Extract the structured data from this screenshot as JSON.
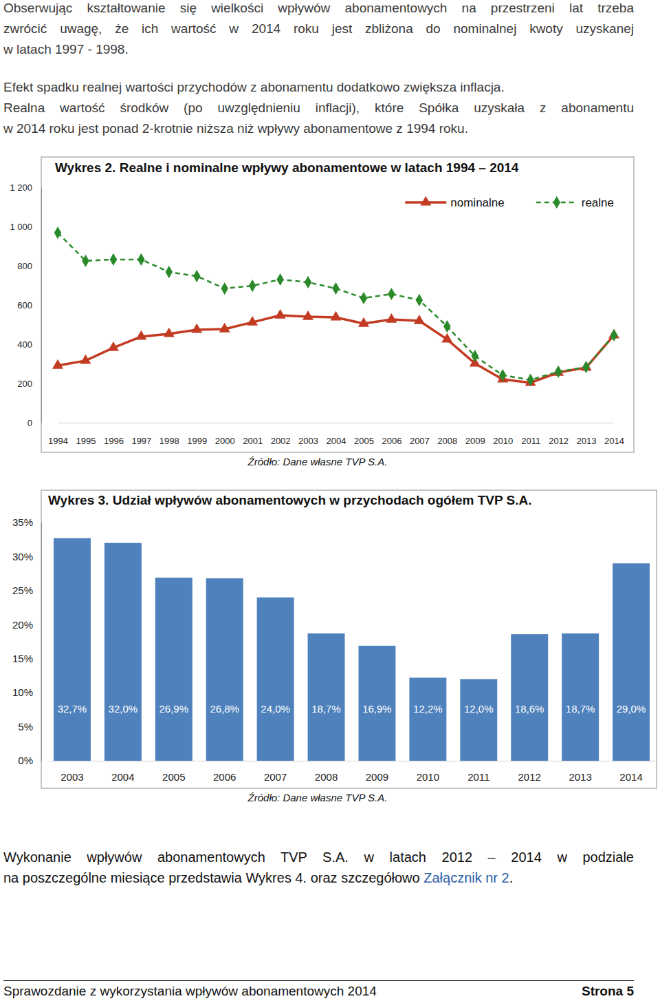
{
  "paragraphs": [
    {
      "lines": [
        "Obserwując kształtowanie się wielkości wpływów abonamentowych na przestrzeni lat trzeba",
        "zwrócić uwagę, że ich wartość w 2014 roku jest zbliżona do nominalnej kwoty uzyskanej",
        "w latach 1997 - 1998."
      ]
    },
    {
      "lines": [
        "Efekt spadku realnej wartości przychodów z abonamentu dodatkowo zwiększa inflacja."
      ]
    },
    {
      "lines": [
        "Realna wartość środków (po uwzględnieniu inflacji), które Spółka uzyskała z abonamentu",
        "w 2014 roku jest ponad 2-krotnie niższa niż wpływy abonamentowe z 1994 roku."
      ]
    }
  ],
  "chart_data": [
    {
      "type": "line",
      "title": "Wykres 2. Realne i nominalne wpływy abonamentowe w latach 1994 – 2014",
      "source": "Źródło: Dane własne TVP S.A.",
      "categories": [
        "1994",
        "1995",
        "1996",
        "1997",
        "1998",
        "1999",
        "2000",
        "2001",
        "2002",
        "2003",
        "2004",
        "2005",
        "2006",
        "2007",
        "2008",
        "2009",
        "2010",
        "2011",
        "2012",
        "2013",
        "2014"
      ],
      "series": [
        {
          "name": "nominalne",
          "color": "#c23b22",
          "marker": "triangle",
          "line_style": "solid",
          "values": [
            291,
            316,
            382,
            439,
            453,
            474,
            477,
            512,
            547,
            540,
            537,
            505,
            526,
            519,
            425,
            302,
            221,
            204,
            256,
            281,
            446
          ]
        },
        {
          "name": "realne",
          "color": "#2a8a2a",
          "marker": "diamond",
          "line_style": "dashed",
          "values": [
            968,
            825,
            832,
            832,
            768,
            747,
            684,
            698,
            730,
            716,
            684,
            635,
            656,
            625,
            491,
            340,
            242,
            218,
            260,
            284,
            446
          ]
        }
      ],
      "ylim": [
        0,
        1200
      ],
      "yticks": [
        0,
        200,
        400,
        600,
        800,
        {
          "value": 1000,
          "label": "1 000"
        },
        {
          "value": 1200,
          "label": "1 200"
        }
      ],
      "grid": false,
      "legend": "top-right"
    },
    {
      "type": "bar",
      "title": "Wykres 3. Udział wpływów abonamentowych w przychodach ogółem TVP S.A.",
      "source": "Źródło: Dane własne TVP S.A.",
      "categories": [
        "2003",
        "2004",
        "2005",
        "2006",
        "2007",
        "2008",
        "2009",
        "2010",
        "2011",
        "2012",
        "2013",
        "2014"
      ],
      "values": [
        32.7,
        32.0,
        26.9,
        26.8,
        24.0,
        18.7,
        16.9,
        12.2,
        12.0,
        18.6,
        18.7,
        29.0
      ],
      "value_labels": [
        "32,7%",
        "32,0%",
        "26,9%",
        "26,8%",
        "24,0%",
        "18,7%",
        "16,9%",
        "12,2%",
        "12,0%",
        "18,6%",
        "18,7%",
        "29,0%"
      ],
      "color": "#4f81bd",
      "ylim": [
        0,
        35
      ],
      "yticks": [
        {
          "value": 0,
          "label": "0%"
        },
        {
          "value": 5,
          "label": "5%"
        },
        {
          "value": 10,
          "label": "10%"
        },
        {
          "value": 15,
          "label": "15%"
        },
        {
          "value": 20,
          "label": "20%"
        },
        {
          "value": 25,
          "label": "25%"
        },
        {
          "value": 30,
          "label": "30%"
        },
        {
          "value": 35,
          "label": "35%"
        }
      ],
      "grid": false,
      "data_labels": true
    }
  ],
  "closing_paragraph": {
    "lines": [
      "Wykonanie wpływów abonamentowych TVP S.A. w latach 2012 – 2014 w podziale",
      "na poszczególne miesiące przedstawia Wykres 4. oraz szczegółowo "
    ],
    "link": "Załącznik nr 2",
    "end": "."
  },
  "footer": {
    "left": "Sprawozdanie z wykorzystania wpływów abonamentowych 2014",
    "right": "Strona 5"
  }
}
